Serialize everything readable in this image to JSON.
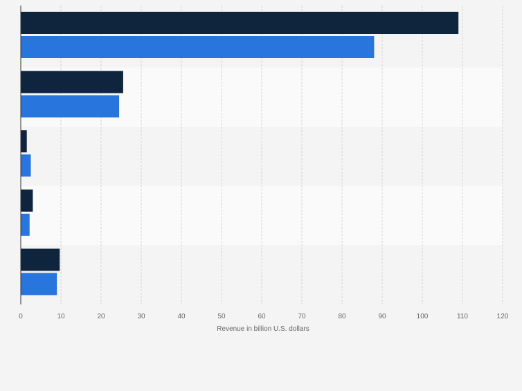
{
  "chart_data": {
    "type": "bar",
    "orientation": "horizontal",
    "categories": [
      "",
      "",
      "",
      "",
      ""
    ],
    "series": [
      {
        "values": [
          109,
          25.5,
          1.5,
          3,
          9.7
        ]
      },
      {
        "values": [
          88,
          24.5,
          2.5,
          2.2,
          9
        ]
      }
    ],
    "title": "",
    "xlabel": "Revenue in billion U.S. dollars",
    "ylabel": "",
    "xlim": [
      0,
      120
    ],
    "xticks": [
      0,
      10,
      20,
      30,
      40,
      50,
      60,
      70,
      80,
      90,
      100,
      110,
      120
    ],
    "grid": "vertical",
    "legend": "none"
  },
  "colors": {
    "series": [
      "#0f253e",
      "#2876dd"
    ],
    "band_light": "#fafafa",
    "band_dark": "#f4f4f4",
    "grid": "#d4d4d4",
    "axis": "#333333",
    "tick_text": "#666666"
  }
}
